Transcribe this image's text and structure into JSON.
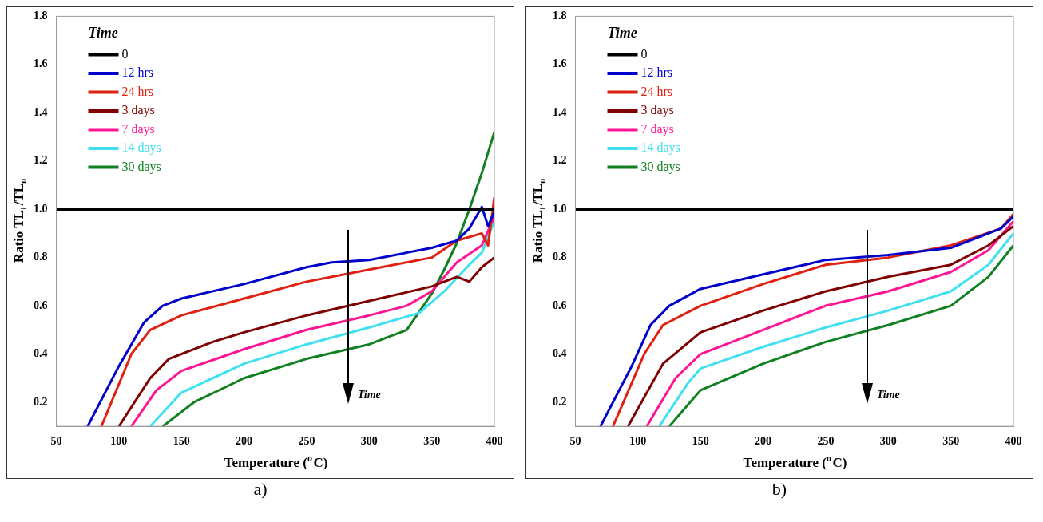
{
  "chart_data": [
    {
      "type": "line",
      "xlabel": "Temperature ($^{o}$C)",
      "ylabel": "Ratio TL$_{t}$/TL$_{o}$",
      "legend_title": "Time",
      "legend": "top left",
      "grid": false,
      "marker": "none",
      "line_style": "solid",
      "xlim": [
        50,
        400
      ],
      "xticks": [
        50,
        100,
        150,
        200,
        250,
        300,
        350,
        400
      ],
      "ylim": [
        0.1,
        1.8
      ],
      "yticks": [
        {
          "value": 0.2,
          "label": "0.2"
        },
        {
          "value": 0.4,
          "label": "0.4"
        },
        {
          "value": 0.6,
          "label": "0.6"
        },
        {
          "value": 0.8,
          "label": "0.8"
        },
        {
          "value": 1,
          "label": "1.0"
        },
        {
          "value": 1.2,
          "label": "1.2"
        },
        {
          "value": 1.4,
          "label": "1.4"
        },
        {
          "value": 1.6,
          "label": "1.6"
        },
        {
          "value": 1.8,
          "label": "1.8"
        }
      ],
      "annotations": [
        "Time",
        "a)"
      ],
      "series": [
        {
          "name": "0",
          "color": "#000000",
          "x": [
            50,
            400
          ],
          "values": [
            1.0,
            1.0
          ]
        },
        {
          "name": "12 hrs",
          "color": "#0000cc",
          "x": [
            75,
            100,
            120,
            135,
            150,
            200,
            250,
            270,
            300,
            350,
            370,
            380,
            390,
            395,
            400
          ],
          "values": [
            0.1,
            0.35,
            0.53,
            0.6,
            0.63,
            0.69,
            0.76,
            0.78,
            0.79,
            0.84,
            0.87,
            0.92,
            1.01,
            0.93,
            0.99
          ]
        },
        {
          "name": "24 hrs",
          "color": "#e02010",
          "x": [
            86,
            110,
            125,
            150,
            200,
            250,
            300,
            350,
            370,
            390,
            395,
            400
          ],
          "values": [
            0.1,
            0.4,
            0.5,
            0.56,
            0.63,
            0.7,
            0.75,
            0.8,
            0.87,
            0.9,
            0.85,
            1.05
          ]
        },
        {
          "name": "3 days",
          "color": "#800000",
          "x": [
            100,
            125,
            140,
            175,
            200,
            250,
            300,
            350,
            370,
            380,
            390,
            400
          ],
          "values": [
            0.1,
            0.3,
            0.38,
            0.45,
            0.49,
            0.56,
            0.62,
            0.68,
            0.72,
            0.7,
            0.76,
            0.8
          ]
        },
        {
          "name": "7 days",
          "color": "#ff1493",
          "x": [
            110,
            130,
            150,
            200,
            250,
            300,
            330,
            350,
            370,
            390,
            400
          ],
          "values": [
            0.1,
            0.25,
            0.33,
            0.42,
            0.5,
            0.56,
            0.6,
            0.66,
            0.78,
            0.85,
            0.97
          ]
        },
        {
          "name": "14 days",
          "color": "#40e0f0",
          "x": [
            125,
            150,
            200,
            250,
            300,
            340,
            360,
            380,
            390,
            400
          ],
          "values": [
            0.1,
            0.24,
            0.36,
            0.44,
            0.51,
            0.57,
            0.66,
            0.77,
            0.82,
            0.95
          ]
        },
        {
          "name": "30 days",
          "color": "#108020",
          "x": [
            135,
            160,
            200,
            250,
            300,
            330,
            350,
            360,
            370,
            380,
            390,
            400
          ],
          "values": [
            0.1,
            0.2,
            0.3,
            0.38,
            0.44,
            0.5,
            0.65,
            0.75,
            0.86,
            1.0,
            1.15,
            1.32
          ]
        }
      ]
    },
    {
      "type": "line",
      "xlabel": "Temperature ($^{o}$C)",
      "ylabel": "Ratio TL$_{t}$/TL$_{o}$",
      "legend_title": "Time",
      "legend": "top left",
      "grid": false,
      "marker": "none",
      "line_style": "solid",
      "xlim": [
        50,
        400
      ],
      "xticks": [
        50,
        100,
        150,
        200,
        250,
        300,
        350,
        400
      ],
      "ylim": [
        0.1,
        1.8
      ],
      "yticks": [
        {
          "value": 0.2,
          "label": "0.2"
        },
        {
          "value": 0.4,
          "label": "0.4"
        },
        {
          "value": 0.6,
          "label": "0.6"
        },
        {
          "value": 0.8,
          "label": "0.8"
        },
        {
          "value": 1,
          "label": "1.0"
        },
        {
          "value": 1.2,
          "label": "1.2"
        },
        {
          "value": 1.4,
          "label": "1.4"
        },
        {
          "value": 1.6,
          "label": "1.6"
        },
        {
          "value": 1.8,
          "label": "1.8"
        }
      ],
      "annotations": [
        "Time",
        "b)"
      ],
      "series": [
        {
          "name": "0",
          "color": "#000000",
          "x": [
            50,
            400
          ],
          "values": [
            1.0,
            1.0
          ]
        },
        {
          "name": "12 hrs",
          "color": "#0000cc",
          "x": [
            70,
            95,
            110,
            125,
            150,
            200,
            250,
            300,
            350,
            390,
            400
          ],
          "values": [
            0.1,
            0.35,
            0.52,
            0.6,
            0.67,
            0.73,
            0.79,
            0.81,
            0.84,
            0.92,
            0.97
          ]
        },
        {
          "name": "24 hrs",
          "color": "#e02010",
          "x": [
            80,
            105,
            120,
            150,
            200,
            250,
            300,
            350,
            390,
            400
          ],
          "values": [
            0.1,
            0.4,
            0.52,
            0.6,
            0.69,
            0.77,
            0.8,
            0.85,
            0.92,
            0.98
          ]
        },
        {
          "name": "3 days",
          "color": "#800000",
          "x": [
            92,
            120,
            150,
            200,
            250,
            300,
            350,
            380,
            400
          ],
          "values": [
            0.1,
            0.36,
            0.49,
            0.58,
            0.66,
            0.72,
            0.77,
            0.85,
            0.93
          ]
        },
        {
          "name": "7 days",
          "color": "#ff1493",
          "x": [
            107,
            130,
            150,
            200,
            250,
            300,
            350,
            380,
            400
          ],
          "values": [
            0.1,
            0.3,
            0.4,
            0.5,
            0.6,
            0.66,
            0.74,
            0.83,
            0.95
          ]
        },
        {
          "name": "14 days",
          "color": "#40e0f0",
          "x": [
            117,
            140,
            150,
            200,
            250,
            300,
            350,
            380,
            400
          ],
          "values": [
            0.1,
            0.28,
            0.34,
            0.43,
            0.51,
            0.58,
            0.66,
            0.77,
            0.9
          ]
        },
        {
          "name": "30 days",
          "color": "#108020",
          "x": [
            125,
            150,
            200,
            250,
            300,
            350,
            380,
            400
          ],
          "values": [
            0.1,
            0.25,
            0.36,
            0.45,
            0.52,
            0.6,
            0.72,
            0.85
          ]
        }
      ]
    }
  ]
}
